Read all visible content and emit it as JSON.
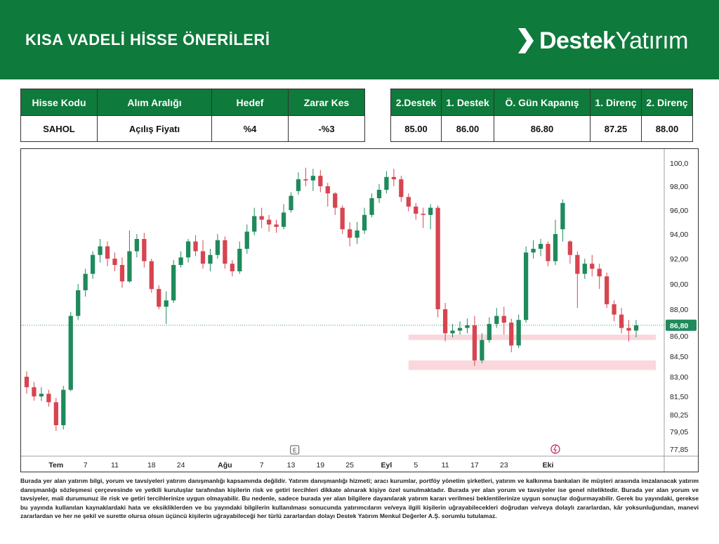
{
  "header": {
    "title": "KISA VADELİ HİSSE ÖNERİLERİ",
    "brand_bold": "Destek",
    "brand_light": "Yatırım"
  },
  "table_left": {
    "headers": [
      "Hisse Kodu",
      "Alım Aralığı",
      "Hedef",
      "Zarar Kes"
    ],
    "row": [
      "SAHOL",
      "Açılış Fiyatı",
      "%4",
      "-%3"
    ]
  },
  "table_right": {
    "headers": [
      "2.Destek",
      "1. Destek",
      "Ö. Gün Kapanış",
      "1. Direnç",
      "2. Direnç"
    ],
    "row": [
      "85.00",
      "86.00",
      "86.80",
      "87.25",
      "88.00"
    ]
  },
  "chart_data": {
    "type": "candlestick",
    "y_ticks": [
      "100,0",
      "98,00",
      "96,00",
      "94,00",
      "92,00",
      "90,00",
      "88,00",
      "86,00",
      "84,50",
      "83,00",
      "81,50",
      "80,25",
      "79,05",
      "77,85"
    ],
    "last_price_label": "86,80",
    "last_price": 86.8,
    "x_ticks": [
      {
        "label": "Tem",
        "i": 4
      },
      {
        "label": "7",
        "i": 8
      },
      {
        "label": "11",
        "i": 12
      },
      {
        "label": "18",
        "i": 17
      },
      {
        "label": "24",
        "i": 21
      },
      {
        "label": "Ağu",
        "i": 27
      },
      {
        "label": "7",
        "i": 32
      },
      {
        "label": "13",
        "i": 36
      },
      {
        "label": "19",
        "i": 40
      },
      {
        "label": "25",
        "i": 44
      },
      {
        "label": "Eyl",
        "i": 49
      },
      {
        "label": "5",
        "i": 53
      },
      {
        "label": "11",
        "i": 57
      },
      {
        "label": "17",
        "i": 61
      },
      {
        "label": "23",
        "i": 65
      },
      {
        "label": "Eki",
        "i": 71
      }
    ],
    "zones": [
      {
        "low": 85.7,
        "high": 86.1
      },
      {
        "low": 83.5,
        "high": 84.2
      }
    ],
    "event_marker": "E",
    "up_color": "#1f8a5b",
    "down_color": "#d64550",
    "candles": [
      [
        83.0,
        82.2,
        83.4,
        81.7
      ],
      [
        82.2,
        81.5,
        82.6,
        81.2
      ],
      [
        81.5,
        81.7,
        82.2,
        81.2
      ],
      [
        81.7,
        81.1,
        82.0,
        80.8
      ],
      [
        81.1,
        79.5,
        81.4,
        79.1
      ],
      [
        79.5,
        82.0,
        82.3,
        79.2
      ],
      [
        82.0,
        87.5,
        87.8,
        81.9
      ],
      [
        87.5,
        89.5,
        90.0,
        87.2
      ],
      [
        89.5,
        90.8,
        91.2,
        89.0
      ],
      [
        90.8,
        92.3,
        92.6,
        90.4
      ],
      [
        92.3,
        93.0,
        93.6,
        91.7
      ],
      [
        93.0,
        92.0,
        93.4,
        91.4
      ],
      [
        92.0,
        91.5,
        92.5,
        91.0
      ],
      [
        91.5,
        90.2,
        92.1,
        89.7
      ],
      [
        90.2,
        92.6,
        94.3,
        90.1
      ],
      [
        92.6,
        93.6,
        94.0,
        92.1
      ],
      [
        93.6,
        91.8,
        94.1,
        91.3
      ],
      [
        91.8,
        89.6,
        92.0,
        89.3
      ],
      [
        89.6,
        88.2,
        89.9,
        88.0
      ],
      [
        88.2,
        88.7,
        89.4,
        86.9
      ],
      [
        88.7,
        91.5,
        91.9,
        88.5
      ],
      [
        91.5,
        92.1,
        92.6,
        91.3
      ],
      [
        92.1,
        93.4,
        93.6,
        91.7
      ],
      [
        93.4,
        92.6,
        93.9,
        92.2
      ],
      [
        92.6,
        91.6,
        93.5,
        91.2
      ],
      [
        91.6,
        92.3,
        92.8,
        91.0
      ],
      [
        92.3,
        93.5,
        94.0,
        92.0
      ],
      [
        93.5,
        91.6,
        93.8,
        91.2
      ],
      [
        91.6,
        91.0,
        91.9,
        90.6
      ],
      [
        91.0,
        92.8,
        93.4,
        90.8
      ],
      [
        92.8,
        94.2,
        94.8,
        92.4
      ],
      [
        94.2,
        95.5,
        96.2,
        93.9
      ],
      [
        95.5,
        95.2,
        96.2,
        94.5
      ],
      [
        95.2,
        94.8,
        95.6,
        94.2
      ],
      [
        94.8,
        94.6,
        95.2,
        94.1
      ],
      [
        94.6,
        95.8,
        96.5,
        94.4
      ],
      [
        96.0,
        97.2,
        97.5,
        95.8
      ],
      [
        97.6,
        98.6,
        99.2,
        97.3
      ],
      [
        98.6,
        98.5,
        99.6,
        98.0
      ],
      [
        98.5,
        98.9,
        99.5,
        97.6
      ],
      [
        98.9,
        98.0,
        99.4,
        97.5
      ],
      [
        98.0,
        97.4,
        98.3,
        96.3
      ],
      [
        97.4,
        96.2,
        97.5,
        95.6
      ],
      [
        96.2,
        94.4,
        96.4,
        94.0
      ],
      [
        94.4,
        93.7,
        95.0,
        93.0
      ],
      [
        93.7,
        94.3,
        95.0,
        93.2
      ],
      [
        94.3,
        95.6,
        96.2,
        94.0
      ],
      [
        95.6,
        97.0,
        97.4,
        95.4
      ],
      [
        97.0,
        97.7,
        98.2,
        96.6
      ],
      [
        97.7,
        98.8,
        99.3,
        97.4
      ],
      [
        98.8,
        98.6,
        99.5,
        98.0
      ],
      [
        98.6,
        97.1,
        98.9,
        96.7
      ],
      [
        97.1,
        96.3,
        97.4,
        95.9
      ],
      [
        96.3,
        95.7,
        96.6,
        95.2
      ],
      [
        95.7,
        95.6,
        96.2,
        94.5
      ],
      [
        95.6,
        96.2,
        96.5,
        94.4
      ],
      [
        96.2,
        88.0,
        96.4,
        87.4
      ],
      [
        88.0,
        86.2,
        88.5,
        85.6
      ],
      [
        86.2,
        86.4,
        86.9,
        85.9
      ],
      [
        86.4,
        86.6,
        87.1,
        86.1
      ],
      [
        86.6,
        86.8,
        87.3,
        86.2
      ],
      [
        86.8,
        84.2,
        87.5,
        83.8
      ],
      [
        84.2,
        85.7,
        86.2,
        84.0
      ],
      [
        85.7,
        86.9,
        87.4,
        85.5
      ],
      [
        86.9,
        87.5,
        88.1,
        86.6
      ],
      [
        87.5,
        87.0,
        88.2,
        86.1
      ],
      [
        87.0,
        85.3,
        87.3,
        84.8
      ],
      [
        85.3,
        87.2,
        87.6,
        85.1
      ],
      [
        87.2,
        92.5,
        93.0,
        87.0
      ],
      [
        92.5,
        92.8,
        93.5,
        92.0
      ],
      [
        92.8,
        93.2,
        93.6,
        92.2
      ],
      [
        93.2,
        91.8,
        93.4,
        91.4
      ],
      [
        91.8,
        94.0,
        95.2,
        91.5
      ],
      [
        94.4,
        96.6,
        96.9,
        93.4
      ],
      [
        93.4,
        92.3,
        93.5,
        91.6
      ],
      [
        92.3,
        90.8,
        92.6,
        88.1
      ],
      [
        90.8,
        91.6,
        92.0,
        90.4
      ],
      [
        91.6,
        91.2,
        92.3,
        90.6
      ],
      [
        91.2,
        90.6,
        91.6,
        89.6
      ],
      [
        90.6,
        88.4,
        90.9,
        88.1
      ],
      [
        88.4,
        87.6,
        88.7,
        87.1
      ],
      [
        87.6,
        86.6,
        88.1,
        86.2
      ],
      [
        86.6,
        86.4,
        87.2,
        85.6
      ],
      [
        86.4,
        86.8,
        87.2,
        85.9
      ]
    ]
  },
  "disclaimer": "Burada yer alan yatırım bilgi, yorum ve tavsiyeleri yatırım danışmanlığı kapsamında değildir. Yatırım danışmanlığı hizmeti; aracı kurumlar, portföy yönetim şirketleri, yatırım ve kalkınma bankaları ile müşteri arasında imzalanacak yatırım danışmanlığı sözleşmesi çerçevesinde ve yetkili kuruluşlar tarafından kişilerin risk ve getiri tercihleri dikkate alınarak kişiye özel sunulmaktadır. Burada yer alan yorum ve tavsiyeler ise genel niteliktedir. Burada yer alan yorum ve tavsiyeler, mali durumunuz ile risk ve getiri tercihlerinize uygun olmayabilir. Bu nedenle, sadece burada yer alan bilgilere dayanılarak yatırım kararı verilmesi beklentilerinize uygun sonuçlar doğurmayabilir. Gerek bu yayındaki, gerekse bu yayında kullanılan kaynaklardaki hata ve eksikliklerden ve bu yayındaki bilgilerin kullanılması sonucunda yatırımcıların ve/veya ilgili kişilerin uğrayabilecekleri doğrudan ve/veya dolaylı zararlardan, kâr yoksunluğundan, manevi zararlardan ve her ne şekil ve surette olursa olsun üçüncü kişilerin uğrayabileceği her türlü zararlardan dolayı Destek Yatırım Menkul Değerler A.Ş. sorumlu tutulamaz."
}
